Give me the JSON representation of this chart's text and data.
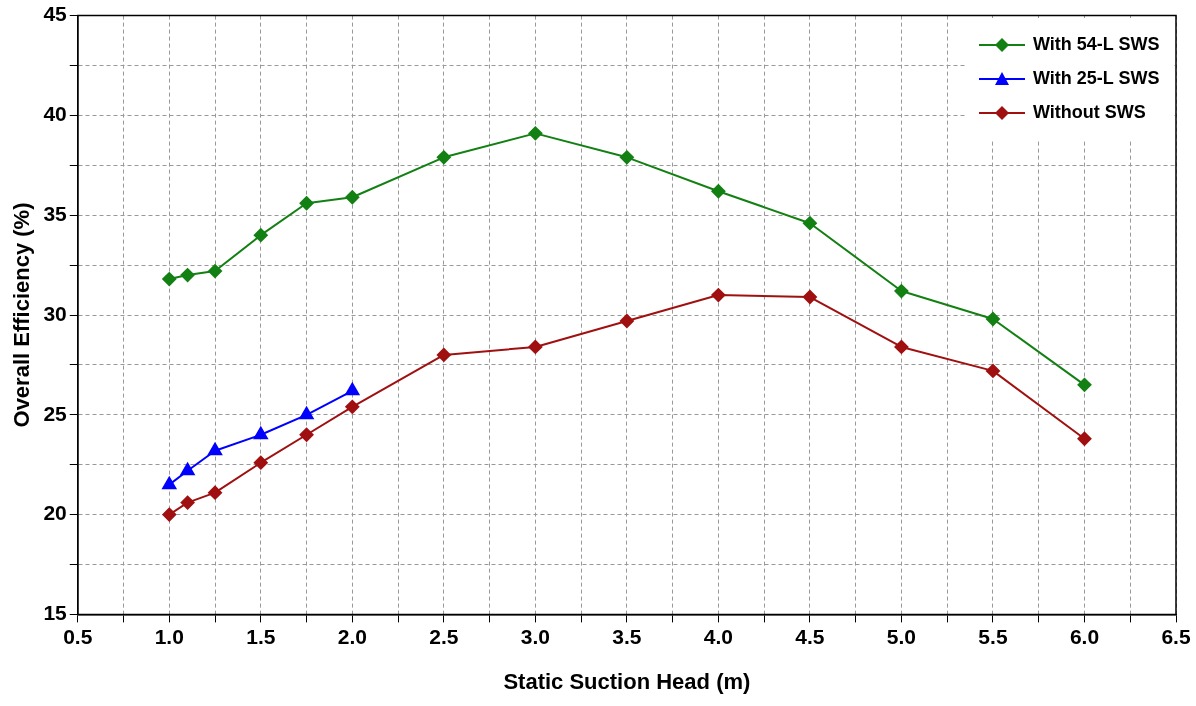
{
  "chart_data": {
    "type": "line",
    "xlabel": "Static Suction Head (m)",
    "ylabel": "Overall Efficiency (%)",
    "xlim": [
      0.5,
      6.5
    ],
    "xticks": [
      {
        "value": 0.5,
        "label": "0.5"
      },
      {
        "value": 0.75,
        "label": null
      },
      {
        "value": 1,
        "label": "1.0"
      },
      {
        "value": 1.25,
        "label": null
      },
      {
        "value": 1.5,
        "label": "1.5"
      },
      {
        "value": 1.75,
        "label": null
      },
      {
        "value": 2,
        "label": "2.0"
      },
      {
        "value": 2.25,
        "label": null
      },
      {
        "value": 2.5,
        "label": "2.5"
      },
      {
        "value": 2.75,
        "label": null
      },
      {
        "value": 3,
        "label": "3.0"
      },
      {
        "value": 3.25,
        "label": null
      },
      {
        "value": 3.5,
        "label": "3.5"
      },
      {
        "value": 3.75,
        "label": null
      },
      {
        "value": 4,
        "label": "4.0"
      },
      {
        "value": 4.25,
        "label": null
      },
      {
        "value": 4.5,
        "label": "4.5"
      },
      {
        "value": 4.75,
        "label": null
      },
      {
        "value": 5,
        "label": "5.0"
      },
      {
        "value": 5.25,
        "label": null
      },
      {
        "value": 5.5,
        "label": "5.5"
      },
      {
        "value": 5.75,
        "label": null
      },
      {
        "value": 6,
        "label": "6.0"
      },
      {
        "value": 6.25,
        "label": null
      },
      {
        "value": 6.5,
        "label": "6.5"
      }
    ],
    "ylim": [
      15,
      45
    ],
    "yticks": [
      15,
      {
        "value": 17.5,
        "label": null
      },
      20,
      {
        "value": 22.5,
        "label": null
      },
      25,
      {
        "value": 27.5,
        "label": null
      },
      30,
      {
        "value": 32.5,
        "label": null
      },
      35,
      {
        "value": 37.5,
        "label": null
      },
      40,
      {
        "value": 42.5,
        "label": null
      },
      45
    ],
    "grid": true,
    "legend": "top right",
    "line_style": "solid",
    "series": [
      {
        "name": "With 54-L SWS",
        "color": "#138013",
        "marker": "diamond",
        "x": [
          1,
          1.1,
          1.25,
          1.5,
          1.75,
          2,
          2.5,
          3,
          3.5,
          4,
          4.5,
          5,
          5.5,
          6
        ],
        "values": [
          31.8,
          32.0,
          32.2,
          34.0,
          35.6,
          35.9,
          37.9,
          39.1,
          37.9,
          36.2,
          34.6,
          31.2,
          29.8,
          26.5
        ]
      },
      {
        "name": "With 25-L SWS",
        "color": "#0000ff",
        "marker": "triangle",
        "x": [
          1,
          1.1,
          1.25,
          1.5,
          1.75,
          2
        ],
        "values": [
          21.5,
          22.2,
          23.2,
          24.0,
          25.0,
          26.2
        ]
      },
      {
        "name": "Without SWS",
        "color": "#a01010",
        "marker": "diamond",
        "x": [
          1,
          1.1,
          1.25,
          1.5,
          1.75,
          2,
          2.5,
          3,
          3.5,
          4,
          4.5,
          5,
          5.5,
          6
        ],
        "values": [
          20.0,
          20.6,
          21.1,
          22.6,
          24.0,
          25.4,
          28.0,
          28.4,
          29.7,
          31.0,
          30.9,
          28.4,
          27.2,
          23.8
        ]
      }
    ]
  }
}
